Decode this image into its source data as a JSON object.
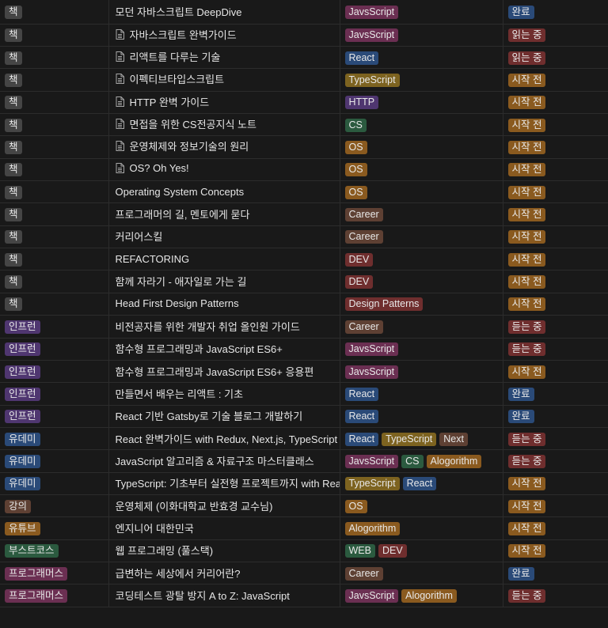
{
  "colors": {
    "gray": "#454545",
    "brown": "#5e4033",
    "orange": "#8a5a1f",
    "yellow": "#7d6320",
    "green": "#2b5a3f",
    "blue": "#2a4a78",
    "purple": "#4f3670",
    "pink": "#6b2f52",
    "red": "#6f2e2e"
  },
  "rows": [
    {
      "type": {
        "label": "책",
        "color": "gray"
      },
      "title": "모던 자바스크립트 DeepDive",
      "icon": false,
      "tags": [
        {
          "label": "JavsScript",
          "color": "pink"
        }
      ],
      "status": {
        "label": "완료",
        "color": "blue"
      }
    },
    {
      "type": {
        "label": "책",
        "color": "gray"
      },
      "title": "자바스크립트 완벽가이드",
      "icon": true,
      "tags": [
        {
          "label": "JavsScript",
          "color": "pink"
        }
      ],
      "status": {
        "label": "읽는 중",
        "color": "red"
      }
    },
    {
      "type": {
        "label": "책",
        "color": "gray"
      },
      "title": "리액트를 다루는 기술",
      "icon": true,
      "tags": [
        {
          "label": "React",
          "color": "blue"
        }
      ],
      "status": {
        "label": "읽는 중",
        "color": "red"
      }
    },
    {
      "type": {
        "label": "책",
        "color": "gray"
      },
      "title": "이펙티브타입스크립트",
      "icon": true,
      "tags": [
        {
          "label": "TypeScript",
          "color": "yellow"
        }
      ],
      "status": {
        "label": "시작 전",
        "color": "orange"
      }
    },
    {
      "type": {
        "label": "책",
        "color": "gray"
      },
      "title": "HTTP 완벽 가이드",
      "icon": true,
      "tags": [
        {
          "label": "HTTP",
          "color": "purple"
        }
      ],
      "status": {
        "label": "시작 전",
        "color": "orange"
      }
    },
    {
      "type": {
        "label": "책",
        "color": "gray"
      },
      "title": "면접을 위한 CS전공지식 노트",
      "icon": true,
      "tags": [
        {
          "label": "CS",
          "color": "green"
        }
      ],
      "status": {
        "label": "시작 전",
        "color": "orange"
      }
    },
    {
      "type": {
        "label": "책",
        "color": "gray"
      },
      "title": "운영체제와 정보기술의 원리",
      "icon": true,
      "tags": [
        {
          "label": "OS",
          "color": "orange"
        }
      ],
      "status": {
        "label": "시작 전",
        "color": "orange"
      }
    },
    {
      "type": {
        "label": "책",
        "color": "gray"
      },
      "title": "OS? Oh Yes!",
      "icon": true,
      "tags": [
        {
          "label": "OS",
          "color": "orange"
        }
      ],
      "status": {
        "label": "시작 전",
        "color": "orange"
      }
    },
    {
      "type": {
        "label": "책",
        "color": "gray"
      },
      "title": "Operating System Concepts",
      "icon": false,
      "tags": [
        {
          "label": "OS",
          "color": "orange"
        }
      ],
      "status": {
        "label": "시작 전",
        "color": "orange"
      }
    },
    {
      "type": {
        "label": "책",
        "color": "gray"
      },
      "title": "프로그래머의 길, 멘토에게 묻다",
      "icon": false,
      "tags": [
        {
          "label": "Career",
          "color": "brown"
        }
      ],
      "status": {
        "label": "시작 전",
        "color": "orange"
      }
    },
    {
      "type": {
        "label": "책",
        "color": "gray"
      },
      "title": "커리어스킬",
      "icon": false,
      "tags": [
        {
          "label": "Career",
          "color": "brown"
        }
      ],
      "status": {
        "label": "시작 전",
        "color": "orange"
      }
    },
    {
      "type": {
        "label": "책",
        "color": "gray"
      },
      "title": "REFACTORING",
      "icon": false,
      "tags": [
        {
          "label": "DEV",
          "color": "red"
        }
      ],
      "status": {
        "label": "시작 전",
        "color": "orange"
      }
    },
    {
      "type": {
        "label": "책",
        "color": "gray"
      },
      "title": "함께 자라기 - 애자일로 가는 길",
      "icon": false,
      "tags": [
        {
          "label": "DEV",
          "color": "red"
        }
      ],
      "status": {
        "label": "시작 전",
        "color": "orange"
      }
    },
    {
      "type": {
        "label": "책",
        "color": "gray"
      },
      "title": "Head First Design Patterns",
      "icon": false,
      "tags": [
        {
          "label": "Design Patterns",
          "color": "red"
        }
      ],
      "status": {
        "label": "시작 전",
        "color": "orange"
      }
    },
    {
      "type": {
        "label": "인프런",
        "color": "purple"
      },
      "title": "비전공자를 위한 개발자 취업 올인원 가이드",
      "icon": false,
      "tags": [
        {
          "label": "Career",
          "color": "brown"
        }
      ],
      "status": {
        "label": "듣는 중",
        "color": "red"
      }
    },
    {
      "type": {
        "label": "인프런",
        "color": "purple"
      },
      "title": "함수형 프로그래밍과 JavaScript ES6+",
      "icon": false,
      "tags": [
        {
          "label": "JavsScript",
          "color": "pink"
        }
      ],
      "status": {
        "label": "듣는 중",
        "color": "red"
      }
    },
    {
      "type": {
        "label": "인프런",
        "color": "purple"
      },
      "title": "함수형 프로그래밍과 JavaScript ES6+ 응용편",
      "icon": false,
      "tags": [
        {
          "label": "JavsScript",
          "color": "pink"
        }
      ],
      "status": {
        "label": "시작 전",
        "color": "orange"
      }
    },
    {
      "type": {
        "label": "인프런",
        "color": "purple"
      },
      "title": "만들면서 배우는 리액트 : 기초",
      "icon": false,
      "tags": [
        {
          "label": "React",
          "color": "blue"
        }
      ],
      "status": {
        "label": "완료",
        "color": "blue"
      }
    },
    {
      "type": {
        "label": "인프런",
        "color": "purple"
      },
      "title": "React 기반 Gatsby로 기술 블로그 개발하기",
      "icon": false,
      "tags": [
        {
          "label": "React",
          "color": "blue"
        }
      ],
      "status": {
        "label": "완료",
        "color": "blue"
      }
    },
    {
      "type": {
        "label": "유데미",
        "color": "blue"
      },
      "title": "React 완벽가이드 with Redux, Next.js, TypeScript",
      "icon": false,
      "tags": [
        {
          "label": "React",
          "color": "blue"
        },
        {
          "label": "TypeScript",
          "color": "yellow"
        },
        {
          "label": "Next",
          "color": "brown"
        }
      ],
      "status": {
        "label": "듣는 중",
        "color": "red"
      }
    },
    {
      "type": {
        "label": "유데미",
        "color": "blue"
      },
      "title": "JavaScript 알고리즘 & 자료구조 마스터클래스",
      "icon": false,
      "tags": [
        {
          "label": "JavsScript",
          "color": "pink"
        },
        {
          "label": "CS",
          "color": "green"
        },
        {
          "label": "Alogorithm",
          "color": "orange"
        }
      ],
      "status": {
        "label": "듣는 중",
        "color": "red"
      }
    },
    {
      "type": {
        "label": "유데미",
        "color": "blue"
      },
      "title": "TypeScript: 기초부터 실전형 프로젝트까지 with React",
      "icon": false,
      "tags": [
        {
          "label": "TypeScript",
          "color": "yellow"
        },
        {
          "label": "React",
          "color": "blue"
        }
      ],
      "status": {
        "label": "시작 전",
        "color": "orange"
      }
    },
    {
      "type": {
        "label": "강의",
        "color": "brown"
      },
      "title": "운영체제 (이화대학교 반효경 교수님)",
      "icon": false,
      "tags": [
        {
          "label": "OS",
          "color": "orange"
        }
      ],
      "status": {
        "label": "시작 전",
        "color": "orange"
      }
    },
    {
      "type": {
        "label": "유튜브",
        "color": "orange"
      },
      "title": "엔지니어 대한민국",
      "icon": false,
      "tags": [
        {
          "label": "Alogorithm",
          "color": "orange"
        }
      ],
      "status": {
        "label": "시작 전",
        "color": "orange"
      }
    },
    {
      "type": {
        "label": "부스트코스",
        "color": "green"
      },
      "title": "웹 프로그래밍 (풀스택)",
      "icon": false,
      "tags": [
        {
          "label": "WEB",
          "color": "green"
        },
        {
          "label": "DEV",
          "color": "red"
        }
      ],
      "status": {
        "label": "시작 전",
        "color": "orange"
      }
    },
    {
      "type": {
        "label": "프로그래머스",
        "color": "pink"
      },
      "title": "급변하는 세상에서 커리어란?",
      "icon": false,
      "tags": [
        {
          "label": "Career",
          "color": "brown"
        }
      ],
      "status": {
        "label": "완료",
        "color": "blue"
      }
    },
    {
      "type": {
        "label": "프로그래머스",
        "color": "pink"
      },
      "title": "코딩테스트 광탈 방지 A to Z: JavaScript",
      "icon": false,
      "tags": [
        {
          "label": "JavsScript",
          "color": "pink"
        },
        {
          "label": "Alogorithm",
          "color": "orange"
        }
      ],
      "status": {
        "label": "듣는 중",
        "color": "red"
      }
    }
  ]
}
